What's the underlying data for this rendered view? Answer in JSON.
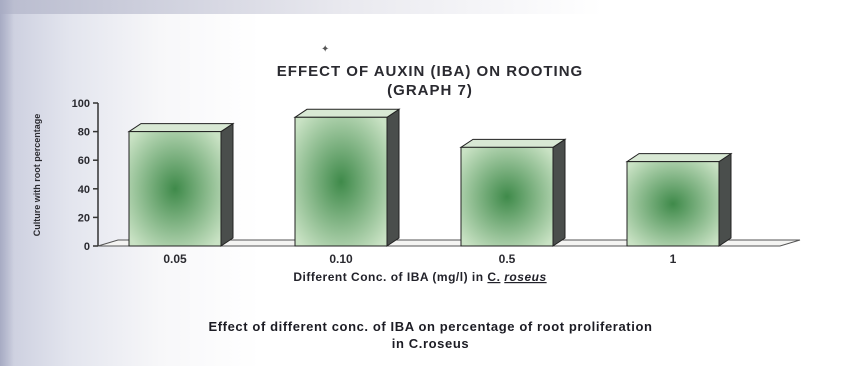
{
  "chart_data": {
    "type": "bar",
    "title_lines": [
      "EFFECT OF AUXIN (IBA) ON ROOTING",
      "(GRAPH 7)"
    ],
    "xlabel_prefix": "Different Conc. of IBA (mg/l) in ",
    "xlabel_species_genus": "C.",
    "xlabel_species_name": "roseus",
    "ylabel": "Culture with root percentage",
    "categories": [
      "0.05",
      "0.10",
      "0.5",
      "1"
    ],
    "values": [
      80,
      90,
      69,
      59
    ],
    "ylim": [
      0,
      100
    ],
    "yticks": [
      "0",
      "20",
      "40",
      "60",
      "80",
      "100"
    ],
    "grid": false,
    "bar_color_center": "#3f8a4a",
    "bar_color_edge": "#c9e2c4",
    "bar_side_color": "#4a4e4c"
  },
  "caption_lines": [
    "Effect of different conc. of IBA on percentage of root proliferation",
    "in C.roseus"
  ]
}
